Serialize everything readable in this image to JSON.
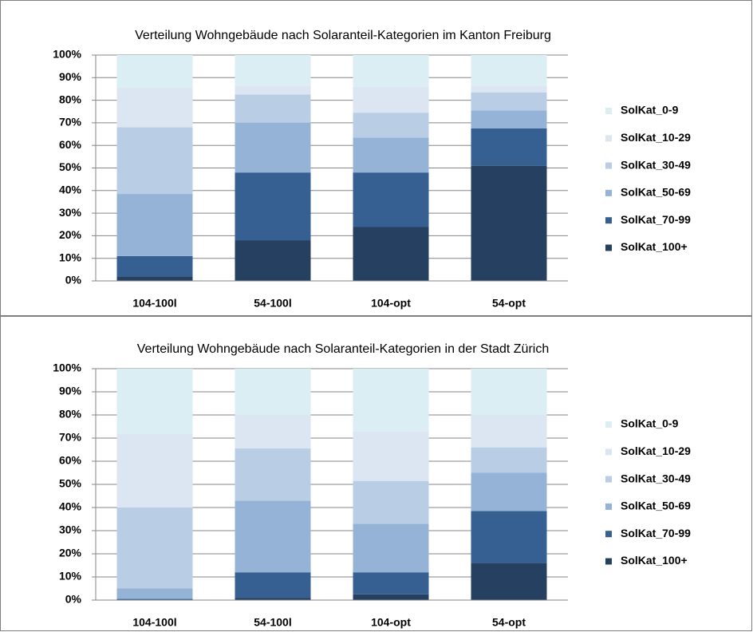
{
  "chart_data": [
    {
      "type": "stacked_bar",
      "title": "Verteilung Wohngebäude nach Solaranteil-Kategorien im Kanton Freiburg",
      "categories": [
        "104-100l",
        "54-100l",
        "104-opt",
        "54-opt"
      ],
      "series": [
        {
          "name": "SolKat_100+",
          "color": "#254061",
          "values": [
            2,
            18,
            24,
            51
          ]
        },
        {
          "name": "SolKat_70-99",
          "color": "#376092",
          "values": [
            9,
            30,
            24,
            16.5
          ]
        },
        {
          "name": "SolKat_50-69",
          "color": "#95b3d7",
          "values": [
            27.5,
            22,
            15.5,
            8
          ]
        },
        {
          "name": "SolKat_30-49",
          "color": "#b9cde5",
          "values": [
            29.5,
            12.5,
            11,
            8
          ]
        },
        {
          "name": "SolKat_10-29",
          "color": "#dce6f2",
          "values": [
            17.5,
            4,
            11.5,
            3
          ]
        },
        {
          "name": "SolKat_0-9",
          "color": "#dbeef3",
          "values": [
            14.5,
            13.5,
            14,
            13.5
          ]
        }
      ],
      "ylim": [
        0,
        100
      ],
      "yticks": [
        {
          "value": 0,
          "label": "0%"
        },
        {
          "value": 10,
          "label": "10%"
        },
        {
          "value": 20,
          "label": "20%"
        },
        {
          "value": 30,
          "label": "30%"
        },
        {
          "value": 40,
          "label": "40%"
        },
        {
          "value": 50,
          "label": "50%"
        },
        {
          "value": 60,
          "label": "60%"
        },
        {
          "value": 70,
          "label": "70%"
        },
        {
          "value": 80,
          "label": "80%"
        },
        {
          "value": 90,
          "label": "90%"
        },
        {
          "value": 100,
          "label": "100%"
        }
      ],
      "grid": true,
      "legend": "right"
    },
    {
      "type": "stacked_bar",
      "title": "Verteilung Wohngebäude nach Solaranteil-Kategorien in der Stadt Zürich",
      "categories": [
        "104-100l",
        "54-100l",
        "104-opt",
        "54-opt"
      ],
      "series": [
        {
          "name": "SolKat_100+",
          "color": "#254061",
          "values": [
            0,
            1,
            2.5,
            16
          ]
        },
        {
          "name": "SolKat_70-99",
          "color": "#376092",
          "values": [
            0.5,
            11,
            9.5,
            22.5
          ]
        },
        {
          "name": "SolKat_50-69",
          "color": "#95b3d7",
          "values": [
            4.5,
            31,
            21,
            16.5
          ]
        },
        {
          "name": "SolKat_30-49",
          "color": "#b9cde5",
          "values": [
            35,
            22.5,
            18.5,
            11
          ]
        },
        {
          "name": "SolKat_10-29",
          "color": "#dce6f2",
          "values": [
            32,
            14.5,
            21.5,
            14
          ]
        },
        {
          "name": "SolKat_0-9",
          "color": "#dbeef3",
          "values": [
            28,
            20,
            27,
            20
          ]
        }
      ],
      "ylim": [
        0,
        100
      ],
      "yticks": [
        {
          "value": 0,
          "label": "0%"
        },
        {
          "value": 10,
          "label": "10%"
        },
        {
          "value": 20,
          "label": "20%"
        },
        {
          "value": 30,
          "label": "30%"
        },
        {
          "value": 40,
          "label": "40%"
        },
        {
          "value": 50,
          "label": "50%"
        },
        {
          "value": 60,
          "label": "60%"
        },
        {
          "value": 70,
          "label": "70%"
        },
        {
          "value": 80,
          "label": "80%"
        },
        {
          "value": 90,
          "label": "90%"
        },
        {
          "value": 100,
          "label": "100%"
        }
      ],
      "grid": true,
      "legend": "right"
    }
  ]
}
